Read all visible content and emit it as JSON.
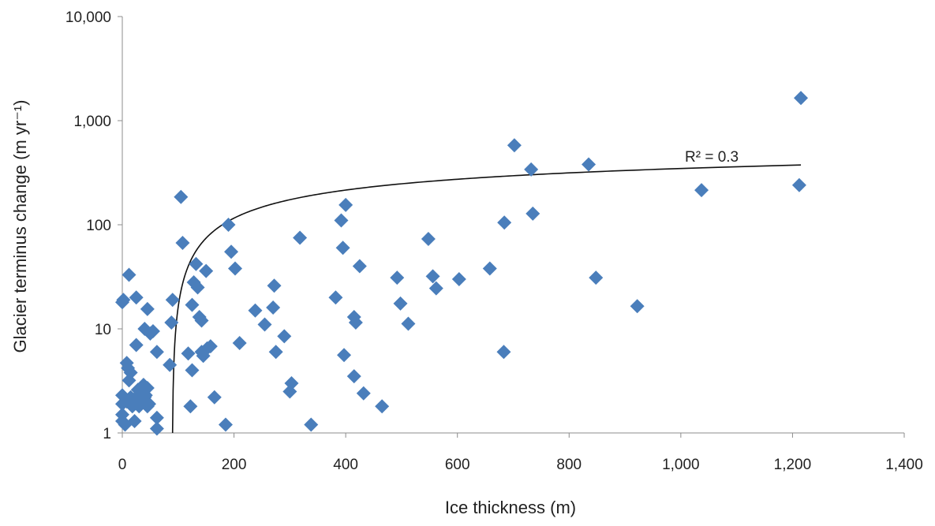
{
  "chart_data": {
    "type": "scatter",
    "xlabel": "Ice thickness (m)",
    "ylabel": "Glacier terminus change (m yr⁻¹)",
    "xlim": [
      0,
      1400
    ],
    "ylim": [
      1,
      10000
    ],
    "yscale": "log",
    "grid": false,
    "legend": "none",
    "x_ticks": [
      0,
      200,
      400,
      600,
      800,
      1000,
      1200,
      1400
    ],
    "x_tick_labels": [
      "0",
      "200",
      "400",
      "600",
      "800",
      "1,000",
      "1,200",
      "1,400"
    ],
    "y_ticks": [
      1,
      10,
      100,
      1000,
      10000
    ],
    "y_tick_labels": [
      "1",
      "10",
      "100",
      "1,000",
      "10,000"
    ],
    "marker_color": "#4a7ebb",
    "series": [
      {
        "marker": "diamond",
        "points": [
          [
            0,
            18
          ],
          [
            2,
            19
          ],
          [
            8,
            4.7
          ],
          [
            12,
            33
          ],
          [
            25,
            20
          ],
          [
            25,
            7
          ],
          [
            15,
            3.8
          ],
          [
            10,
            4.2
          ],
          [
            12,
            3.2
          ],
          [
            0,
            2.3
          ],
          [
            0,
            1.9
          ],
          [
            0,
            1.5
          ],
          [
            0,
            1.3
          ],
          [
            5,
            1.2
          ],
          [
            8,
            2
          ],
          [
            10,
            2
          ],
          [
            15,
            2.2
          ],
          [
            18,
            1.8
          ],
          [
            22,
            1.3
          ],
          [
            25,
            2.2
          ],
          [
            28,
            2.6
          ],
          [
            30,
            2
          ],
          [
            30,
            1.8
          ],
          [
            35,
            2.2
          ],
          [
            38,
            2.9
          ],
          [
            40,
            2.2
          ],
          [
            42,
            2.3
          ],
          [
            45,
            1.8
          ],
          [
            45,
            2.7
          ],
          [
            48,
            1.9
          ],
          [
            40,
            10
          ],
          [
            45,
            15.5
          ],
          [
            50,
            9
          ],
          [
            55,
            9.5
          ],
          [
            62,
            6
          ],
          [
            62,
            1.4
          ],
          [
            62,
            1.1
          ],
          [
            85,
            4.5
          ],
          [
            88,
            11.5
          ],
          [
            90,
            19
          ],
          [
            105,
            185
          ],
          [
            108,
            67
          ],
          [
            118,
            5.8
          ],
          [
            122,
            1.8
          ],
          [
            125,
            4
          ],
          [
            125,
            17
          ],
          [
            128,
            28
          ],
          [
            132,
            42
          ],
          [
            135,
            25
          ],
          [
            138,
            13
          ],
          [
            142,
            6
          ],
          [
            142,
            12
          ],
          [
            145,
            5.5
          ],
          [
            150,
            36
          ],
          [
            152,
            6.5
          ],
          [
            158,
            6.8
          ],
          [
            165,
            2.2
          ],
          [
            185,
            1.2
          ],
          [
            190,
            100
          ],
          [
            195,
            55
          ],
          [
            202,
            38
          ],
          [
            210,
            7.3
          ],
          [
            238,
            15
          ],
          [
            255,
            11
          ],
          [
            270,
            16
          ],
          [
            272,
            26
          ],
          [
            275,
            6
          ],
          [
            290,
            8.5
          ],
          [
            300,
            2.5
          ],
          [
            303,
            3
          ],
          [
            318,
            75
          ],
          [
            338,
            1.2
          ],
          [
            382,
            20
          ],
          [
            392,
            110
          ],
          [
            395,
            60
          ],
          [
            397,
            5.6
          ],
          [
            400,
            155
          ],
          [
            415,
            13
          ],
          [
            415,
            3.5
          ],
          [
            418,
            11.5
          ],
          [
            425,
            40
          ],
          [
            432,
            2.4
          ],
          [
            465,
            1.8
          ],
          [
            492,
            31
          ],
          [
            498,
            17.5
          ],
          [
            512,
            11.2
          ],
          [
            548,
            73
          ],
          [
            556,
            32
          ],
          [
            562,
            24.5
          ],
          [
            603,
            30
          ],
          [
            658,
            38
          ],
          [
            683,
            6
          ],
          [
            684,
            105
          ],
          [
            702,
            580
          ],
          [
            732,
            340
          ],
          [
            735,
            128
          ],
          [
            835,
            380
          ],
          [
            848,
            31
          ],
          [
            922,
            16.5
          ],
          [
            1037,
            215
          ],
          [
            1212,
            240
          ],
          [
            1215,
            1650
          ]
        ]
      }
    ],
    "trendline": {
      "type": "logarithmic",
      "color": "#111111",
      "label": "R² = 0.3",
      "x_start": 90,
      "x_end": 1215,
      "y_at_x_start": 1,
      "y_at_x_end": 375
    }
  }
}
